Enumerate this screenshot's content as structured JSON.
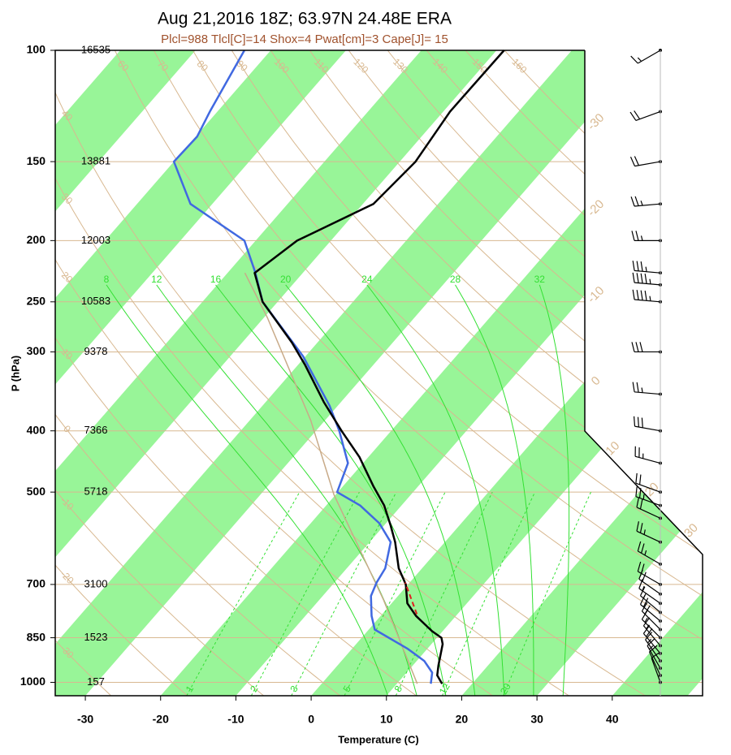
{
  "chart_data": {
    "type": "skewt",
    "title": "Aug 21,2016 18Z; 63.97N 24.48E ERA",
    "subtitle": "Plcl=988 Tlcl[C]=14 Shox=4 Pwat[cm]=3 Cape[J]= 15",
    "ylabel": "P (hPa)",
    "xlabel": "Temperature (C)",
    "log_y": true,
    "ylim": [
      1050,
      100
    ],
    "yticks": [
      100,
      150,
      200,
      250,
      300,
      400,
      500,
      700,
      850,
      1000
    ],
    "heights": [
      "16535",
      "13881",
      "12003",
      "10583",
      "9378",
      "7366",
      "5718",
      "3100",
      "1523",
      "157"
    ],
    "xlim": [
      -34,
      52
    ],
    "xticks": [
      -30,
      -20,
      -10,
      0,
      10,
      20,
      30,
      40
    ],
    "band_color": "#98f598",
    "green_bands": [
      [
        -100,
        -90
      ],
      [
        -80,
        -70
      ],
      [
        -60,
        -50
      ],
      [
        -40,
        -30
      ],
      [
        -20,
        -10
      ],
      [
        0,
        10
      ],
      [
        20,
        30
      ],
      [
        40,
        50
      ]
    ],
    "isotherm_labels": [
      -30,
      -20,
      -10,
      0,
      10,
      20,
      30
    ],
    "adiabat_color": "#d8b890",
    "dry_adiabats": [
      -30,
      -20,
      -10,
      0,
      10,
      20,
      30,
      40,
      60,
      70,
      80,
      90,
      100,
      110,
      120,
      130,
      140,
      150,
      160
    ],
    "moist_color": "#33e033",
    "moist_adiabats": [
      8,
      12,
      16,
      20,
      24,
      28,
      32
    ],
    "mixing_ratios": [
      1,
      2,
      3,
      5,
      8,
      12,
      20
    ],
    "temperature": {
      "color": "#000000",
      "pressure": [
        1005,
        975,
        940,
        870,
        850,
        830,
        785,
        750,
        700,
        660,
        600,
        565,
        525,
        490,
        440,
        400,
        360,
        315,
        290,
        250,
        225,
        200,
        175,
        150,
        125,
        100
      ],
      "values": [
        16.0,
        14.4,
        13.4,
        11.5,
        10.6,
        8.6,
        4.7,
        2.1,
        -0.3,
        -3.1,
        -6.6,
        -9.1,
        -12.3,
        -15.9,
        -21.2,
        -26.6,
        -32.3,
        -39.0,
        -43.4,
        -52.0,
        -56.4,
        -54.5,
        -48.6,
        -47.9,
        -49.1,
        -49.0
      ]
    },
    "dewpoint": {
      "color": "#4169e1",
      "pressure": [
        1005,
        965,
        925,
        885,
        825,
        785,
        730,
        695,
        660,
        600,
        560,
        525,
        500,
        450,
        400,
        365,
        305,
        250,
        225,
        200,
        175,
        150,
        137,
        125,
        100
      ],
      "values": [
        14.5,
        13.4,
        11.0,
        7.4,
        0.8,
        -1.2,
        -3.6,
        -4.4,
        -4.9,
        -7.2,
        -10.9,
        -15.5,
        -20.1,
        -22.0,
        -26.9,
        -31.1,
        -40.3,
        -52.0,
        -56.3,
        -61.5,
        -72.9,
        -80.0,
        -79.8,
        -81.0,
        -83.5
      ]
    },
    "parcel": {
      "color": "#c8aa88",
      "pressure": [
        1005,
        740,
        505,
        385,
        265,
        225
      ],
      "values": [
        12.7,
        -1.5,
        -20.2,
        -31.9,
        -49.5,
        -57.7
      ]
    },
    "lcl_segment": {
      "color": "#e02020",
      "pressure": [
        780,
        695
      ],
      "values": [
        4.6,
        -0.6
      ]
    },
    "wind": {
      "pressure": [
        100,
        125,
        150,
        175,
        200,
        225,
        235,
        250,
        300,
        350,
        400,
        450,
        500,
        525,
        550,
        600,
        650,
        700,
        725,
        750,
        775,
        800,
        825,
        850,
        875,
        900,
        925,
        950,
        975,
        1000
      ],
      "direction": [
        300,
        290,
        280,
        275,
        270,
        265,
        265,
        265,
        270,
        265,
        260,
        255,
        250,
        250,
        245,
        245,
        240,
        240,
        235,
        235,
        230,
        230,
        225,
        225,
        220,
        220,
        215,
        210,
        205,
        200
      ],
      "speed": [
        15,
        20,
        20,
        25,
        25,
        35,
        45,
        45,
        30,
        25,
        30,
        25,
        20,
        25,
        20,
        25,
        25,
        20,
        20,
        15,
        15,
        20,
        20,
        15,
        15,
        20,
        15,
        15,
        10,
        10
      ]
    }
  }
}
